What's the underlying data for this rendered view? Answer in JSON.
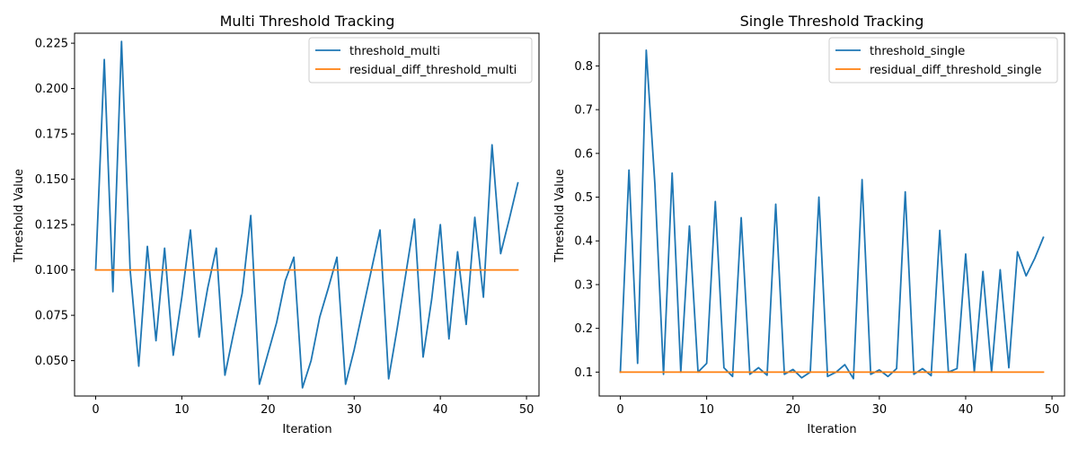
{
  "chart_data": [
    {
      "type": "line",
      "title": "Multi Threshold Tracking",
      "xlabel": "Iteration",
      "ylabel": "Threshold Value",
      "xlim": [
        -2.45,
        51.45
      ],
      "ylim": [
        0.0305,
        0.2305
      ],
      "xticks": [
        0,
        10,
        20,
        30,
        40,
        50
      ],
      "yticks": [
        0.05,
        0.075,
        0.1,
        0.125,
        0.15,
        0.175,
        0.2,
        0.225
      ],
      "ytick_labels": [
        "0.050",
        "0.075",
        "0.100",
        "0.125",
        "0.150",
        "0.175",
        "0.200",
        "0.225"
      ],
      "legend_position": "upper right",
      "series": [
        {
          "name": "threshold_multi",
          "color": "#1f77b4",
          "x": [
            0,
            1,
            2,
            3,
            4,
            5,
            6,
            7,
            8,
            9,
            10,
            11,
            12,
            13,
            14,
            15,
            16,
            17,
            18,
            19,
            20,
            21,
            22,
            23,
            24,
            25,
            26,
            27,
            28,
            29,
            30,
            31,
            32,
            33,
            34,
            35,
            36,
            37,
            38,
            39,
            40,
            41,
            42,
            43,
            44,
            45,
            46,
            47,
            48,
            49
          ],
          "y": [
            0.1,
            0.216,
            0.088,
            0.226,
            0.1,
            0.047,
            0.113,
            0.061,
            0.112,
            0.053,
            0.085,
            0.122,
            0.063,
            0.09,
            0.112,
            0.042,
            0.065,
            0.087,
            0.13,
            0.037,
            0.054,
            0.071,
            0.094,
            0.107,
            0.035,
            0.05,
            0.074,
            0.09,
            0.107,
            0.037,
            0.056,
            0.078,
            0.1,
            0.122,
            0.04,
            0.068,
            0.098,
            0.128,
            0.052,
            0.084,
            0.125,
            0.062,
            0.11,
            0.07,
            0.129,
            0.085,
            0.169,
            0.109,
            0.128,
            0.148
          ]
        },
        {
          "name": "residual_diff_threshold_multi",
          "color": "#ff7f0e",
          "x": [
            0,
            49
          ],
          "y": [
            0.1,
            0.1
          ]
        }
      ]
    },
    {
      "type": "line",
      "title": "Single Threshold Tracking",
      "xlabel": "Iteration",
      "ylabel": "Threshold Value",
      "xlim": [
        -2.45,
        51.45
      ],
      "ylim": [
        0.0453,
        0.8748
      ],
      "xticks": [
        0,
        10,
        20,
        30,
        40,
        50
      ],
      "yticks": [
        0.1,
        0.2,
        0.3,
        0.4,
        0.5,
        0.6,
        0.7,
        0.8
      ],
      "ytick_labels": [
        "0.1",
        "0.2",
        "0.3",
        "0.4",
        "0.5",
        "0.6",
        "0.7",
        "0.8"
      ],
      "legend_position": "upper right",
      "series": [
        {
          "name": "threshold_single",
          "color": "#1f77b4",
          "x": [
            0,
            1,
            2,
            3,
            4,
            5,
            6,
            7,
            8,
            9,
            10,
            11,
            12,
            13,
            14,
            15,
            16,
            17,
            18,
            19,
            20,
            21,
            22,
            23,
            24,
            25,
            26,
            27,
            28,
            29,
            30,
            31,
            32,
            33,
            34,
            35,
            36,
            37,
            38,
            39,
            40,
            41,
            42,
            43,
            44,
            45,
            46,
            47,
            48,
            49
          ],
          "y": [
            0.1,
            0.562,
            0.12,
            0.836,
            0.53,
            0.095,
            0.555,
            0.1,
            0.434,
            0.1,
            0.12,
            0.49,
            0.11,
            0.09,
            0.453,
            0.095,
            0.11,
            0.093,
            0.484,
            0.095,
            0.106,
            0.087,
            0.1,
            0.5,
            0.09,
            0.1,
            0.117,
            0.085,
            0.54,
            0.095,
            0.105,
            0.09,
            0.108,
            0.512,
            0.095,
            0.108,
            0.092,
            0.424,
            0.1,
            0.108,
            0.37,
            0.1,
            0.33,
            0.1,
            0.334,
            0.11,
            0.375,
            0.32,
            0.36,
            0.408
          ]
        },
        {
          "name": "residual_diff_threshold_single",
          "color": "#ff7f0e",
          "x": [
            0,
            49
          ],
          "y": [
            0.1,
            0.1
          ]
        }
      ]
    }
  ]
}
